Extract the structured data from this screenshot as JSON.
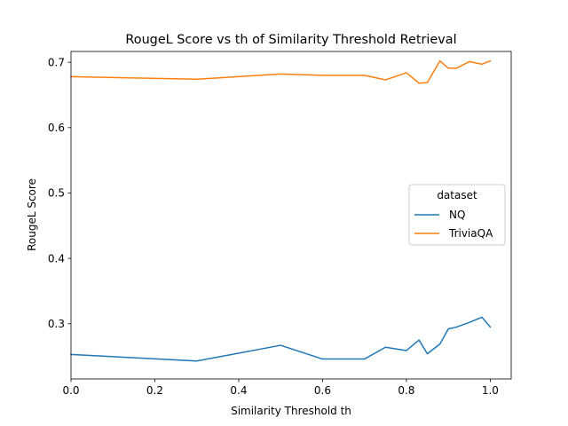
{
  "chart_data": {
    "type": "line",
    "title": "RougeL Score vs th of Similarity Threshold Retrieval",
    "xlabel": "Similarity Threshold th",
    "ylabel": "RougeL Score",
    "xlim": [
      0.0,
      1.05
    ],
    "ylim": [
      0.2155,
      0.7165
    ],
    "xticks": [
      0.0,
      0.2,
      0.4,
      0.6,
      0.8,
      1.0
    ],
    "xtick_labels": [
      "0.0",
      "0.2",
      "0.4",
      "0.6",
      "0.8",
      "1.0"
    ],
    "yticks": [
      0.3,
      0.4,
      0.5,
      0.6,
      0.7
    ],
    "ytick_labels": [
      "0.3",
      "0.4",
      "0.5",
      "0.6",
      "0.7"
    ],
    "grid": false,
    "legend": {
      "title": "dataset",
      "placement": "center-right"
    },
    "series": [
      {
        "name": "NQ",
        "color": "#1f77b4",
        "x": [
          0.0,
          0.3,
          0.5,
          0.6,
          0.7,
          0.75,
          0.8,
          0.83,
          0.85,
          0.88,
          0.9,
          0.92,
          0.95,
          0.98,
          1.0
        ],
        "y": [
          0.253,
          0.243,
          0.267,
          0.246,
          0.246,
          0.264,
          0.259,
          0.275,
          0.254,
          0.269,
          0.292,
          0.295,
          0.302,
          0.31,
          0.295
        ]
      },
      {
        "name": "TriviaQA",
        "color": "#ff7f0e",
        "x": [
          0.0,
          0.3,
          0.5,
          0.6,
          0.7,
          0.75,
          0.8,
          0.83,
          0.85,
          0.88,
          0.9,
          0.92,
          0.95,
          0.98,
          1.0
        ],
        "y": [
          0.678,
          0.674,
          0.682,
          0.68,
          0.68,
          0.673,
          0.684,
          0.668,
          0.669,
          0.702,
          0.691,
          0.691,
          0.701,
          0.697,
          0.702
        ]
      }
    ]
  }
}
